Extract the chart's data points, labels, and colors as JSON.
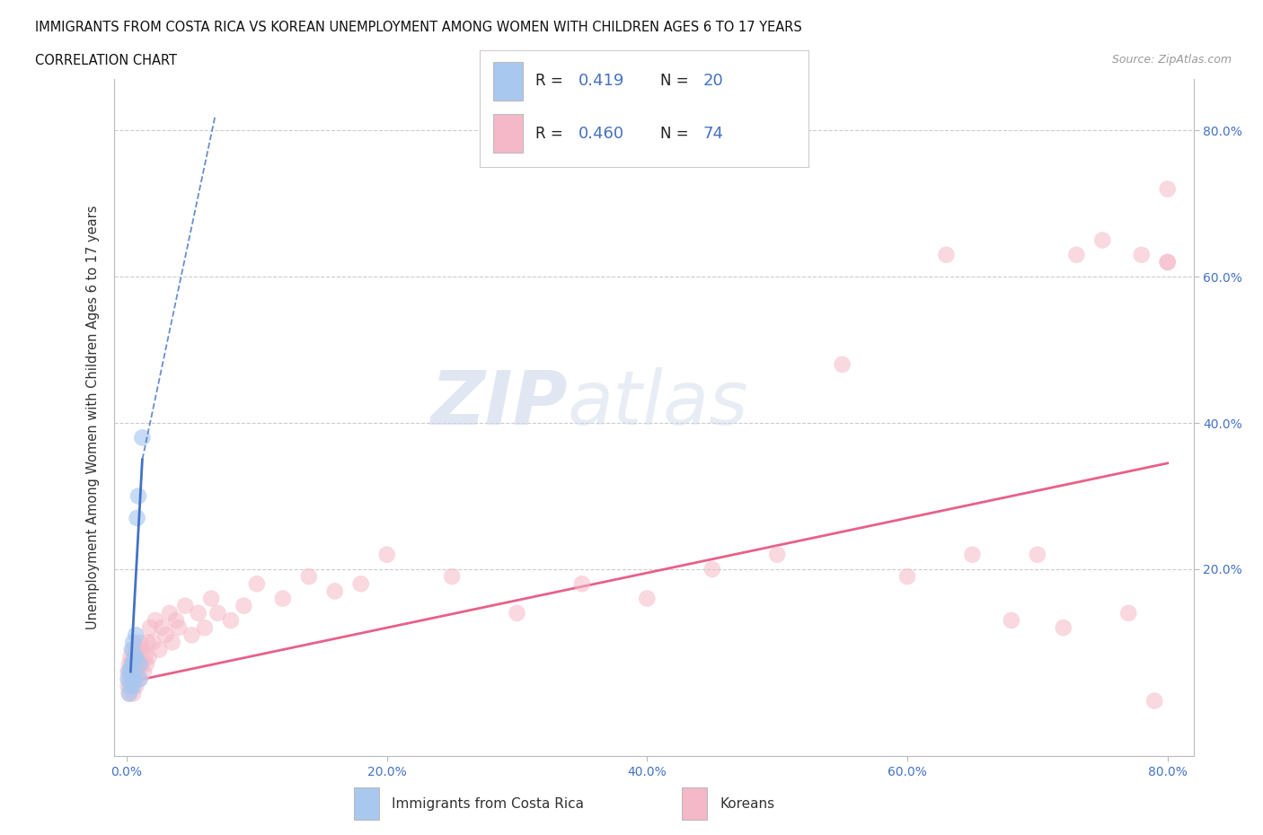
{
  "title_line1": "IMMIGRANTS FROM COSTA RICA VS KOREAN UNEMPLOYMENT AMONG WOMEN WITH CHILDREN AGES 6 TO 17 YEARS",
  "title_line2": "CORRELATION CHART",
  "source_text": "Source: ZipAtlas.com",
  "ylabel": "Unemployment Among Women with Children Ages 6 to 17 years",
  "xlim": [
    -0.01,
    0.82
  ],
  "ylim": [
    -0.055,
    0.87
  ],
  "color_blue": "#a8c8f0",
  "color_pink": "#f5b8c8",
  "line_blue": "#4472c4",
  "line_pink": "#e8608a",
  "tick_color": "#4472c4",
  "cr_x": [
    0.001,
    0.002,
    0.002,
    0.003,
    0.003,
    0.004,
    0.004,
    0.004,
    0.005,
    0.005,
    0.005,
    0.006,
    0.006,
    0.007,
    0.007,
    0.008,
    0.009,
    0.01,
    0.01,
    0.012
  ],
  "cr_y": [
    0.05,
    0.03,
    0.06,
    0.04,
    0.06,
    0.05,
    0.07,
    0.09,
    0.04,
    0.07,
    0.1,
    0.05,
    0.08,
    0.08,
    0.11,
    0.27,
    0.3,
    0.05,
    0.07,
    0.38
  ],
  "kr_x": [
    0.001,
    0.001,
    0.002,
    0.002,
    0.002,
    0.003,
    0.003,
    0.003,
    0.004,
    0.004,
    0.005,
    0.005,
    0.005,
    0.006,
    0.006,
    0.007,
    0.007,
    0.008,
    0.008,
    0.009,
    0.01,
    0.01,
    0.011,
    0.012,
    0.013,
    0.014,
    0.015,
    0.016,
    0.017,
    0.018,
    0.02,
    0.022,
    0.025,
    0.027,
    0.03,
    0.033,
    0.035,
    0.038,
    0.04,
    0.045,
    0.05,
    0.055,
    0.06,
    0.065,
    0.07,
    0.08,
    0.09,
    0.1,
    0.12,
    0.14,
    0.16,
    0.18,
    0.2,
    0.25,
    0.3,
    0.35,
    0.4,
    0.45,
    0.5,
    0.55,
    0.6,
    0.63,
    0.65,
    0.68,
    0.7,
    0.72,
    0.73,
    0.75,
    0.77,
    0.78,
    0.79,
    0.8,
    0.8,
    0.8
  ],
  "kr_y": [
    0.04,
    0.06,
    0.03,
    0.05,
    0.07,
    0.04,
    0.06,
    0.08,
    0.05,
    0.07,
    0.03,
    0.06,
    0.09,
    0.05,
    0.08,
    0.04,
    0.07,
    0.06,
    0.09,
    0.07,
    0.05,
    0.1,
    0.07,
    0.09,
    0.06,
    0.08,
    0.07,
    0.1,
    0.08,
    0.12,
    0.1,
    0.13,
    0.09,
    0.12,
    0.11,
    0.14,
    0.1,
    0.13,
    0.12,
    0.15,
    0.11,
    0.14,
    0.12,
    0.16,
    0.14,
    0.13,
    0.15,
    0.18,
    0.16,
    0.19,
    0.17,
    0.18,
    0.22,
    0.19,
    0.14,
    0.18,
    0.16,
    0.2,
    0.22,
    0.48,
    0.19,
    0.63,
    0.22,
    0.13,
    0.22,
    0.12,
    0.63,
    0.65,
    0.14,
    0.63,
    0.02,
    0.62,
    0.62,
    0.72
  ],
  "cr_trend_x": [
    0.0,
    0.015
  ],
  "cr_trend_y_start": 0.04,
  "cr_trend_slope": 25.0,
  "kr_trend_x": [
    0.0,
    0.8
  ],
  "kr_trend_y_start": 0.045,
  "kr_trend_y_end": 0.345
}
